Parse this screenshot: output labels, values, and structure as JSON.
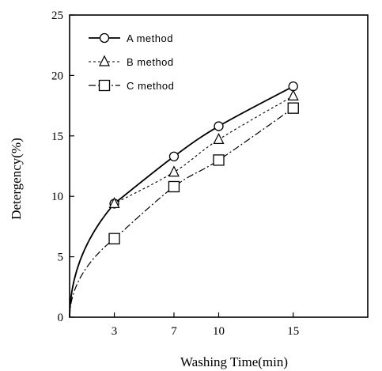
{
  "chart_data": {
    "type": "line",
    "title": "",
    "xlabel": "Washing Time(min)",
    "ylabel": "Detergency(%)",
    "xlim": [
      0,
      20
    ],
    "ylim": [
      0,
      25
    ],
    "xticks": [
      3,
      7,
      10,
      15
    ],
    "yticks": [
      0,
      5,
      10,
      15,
      20,
      25
    ],
    "legend_position": "top-left",
    "grid": false,
    "series": [
      {
        "name": "A method",
        "marker": "circle",
        "line_style": "solid",
        "color": "#000000",
        "x": [
          3,
          7,
          10,
          15
        ],
        "y": [
          9.4,
          13.3,
          15.8,
          19.1
        ]
      },
      {
        "name": "B method",
        "marker": "triangle",
        "line_style": "dotted",
        "color": "#000000",
        "x": [
          3,
          7,
          10,
          15
        ],
        "y": [
          9.4,
          12.0,
          14.7,
          18.3
        ]
      },
      {
        "name": "C method",
        "marker": "square",
        "line_style": "dash-dot",
        "color": "#000000",
        "x": [
          3,
          7,
          10,
          15
        ],
        "y": [
          6.5,
          10.8,
          13.0,
          17.3
        ]
      }
    ]
  }
}
